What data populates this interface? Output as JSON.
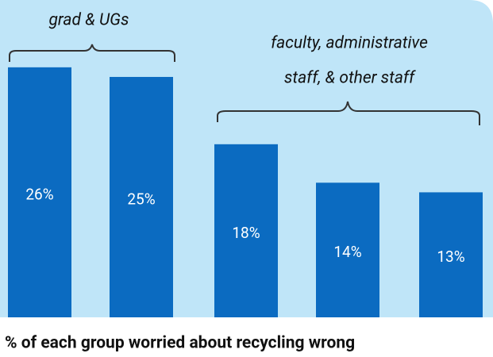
{
  "chart_data": {
    "type": "bar",
    "title": "% of each group worried about recycling wrong",
    "annotations": [
      "grad & UGs",
      [
        "faculty, administrative",
        "staff, & other staff"
      ]
    ],
    "categories": [
      null,
      null,
      null,
      null,
      null
    ],
    "values": [
      26,
      25,
      18,
      14,
      13
    ],
    "value_labels": [
      "26%",
      "25%",
      "18%",
      "14%",
      "13%"
    ],
    "color": "#0b6bc1",
    "ylim": [
      0,
      33
    ]
  }
}
